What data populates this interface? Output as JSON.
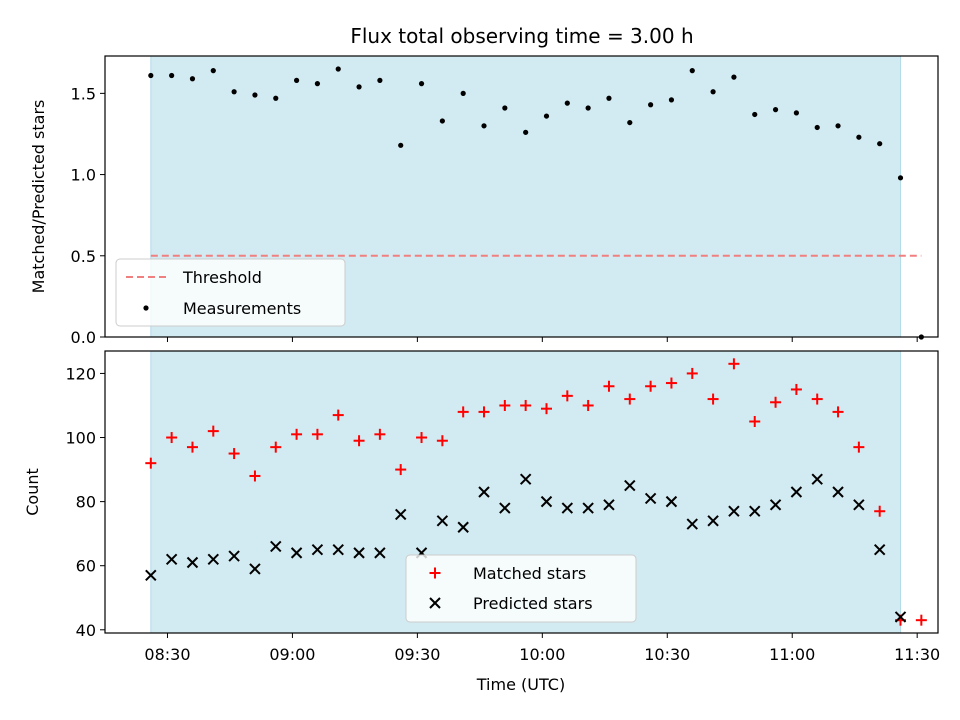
{
  "colors": {
    "shade": "#add8e6",
    "threshold": "#f08080",
    "measurement": "#000000",
    "matched": "#ff0000",
    "predicted": "#000000"
  },
  "chart_data": [
    {
      "type": "scatter",
      "title": "Flux total observing time = 3.00 h",
      "ylabel": "Matched/Predicted stars",
      "xlabel": "",
      "xlim": [
        "08:15",
        "11:35"
      ],
      "ylim": [
        0,
        1.73
      ],
      "yticks": [
        0.0,
        0.5,
        1.0,
        1.5
      ],
      "ytick_labels": [
        "0.0",
        "0.5",
        "1.0",
        "1.5"
      ],
      "shaded_span": [
        "08:26",
        "11:26"
      ],
      "threshold": {
        "name": "Threshold",
        "y": 0.5,
        "x_range": [
          "08:26",
          "11:31"
        ]
      },
      "legend": {
        "position": "lower-left",
        "entries": [
          "Threshold",
          "Measurements"
        ]
      },
      "series": [
        {
          "name": "Measurements",
          "x": [
            "08:26",
            "08:31",
            "08:36",
            "08:41",
            "08:46",
            "08:51",
            "08:56",
            "09:01",
            "09:06",
            "09:11",
            "09:16",
            "09:21",
            "09:26",
            "09:31",
            "09:36",
            "09:41",
            "09:46",
            "09:51",
            "09:56",
            "10:01",
            "10:06",
            "10:11",
            "10:16",
            "10:21",
            "10:26",
            "10:31",
            "10:36",
            "10:41",
            "10:46",
            "10:51",
            "10:56",
            "11:01",
            "11:06",
            "11:11",
            "11:16",
            "11:21",
            "11:26",
            "11:31"
          ],
          "y": [
            1.61,
            1.61,
            1.59,
            1.64,
            1.51,
            1.49,
            1.47,
            1.58,
            1.56,
            1.65,
            1.54,
            1.58,
            1.18,
            1.56,
            1.33,
            1.5,
            1.3,
            1.41,
            1.26,
            1.36,
            1.44,
            1.41,
            1.47,
            1.32,
            1.43,
            1.46,
            1.64,
            1.51,
            1.6,
            1.37,
            1.4,
            1.38,
            1.29,
            1.3,
            1.23,
            1.19,
            0.98,
            0.0
          ]
        }
      ]
    },
    {
      "type": "scatter",
      "title": "",
      "ylabel": "Count",
      "xlabel": "Time (UTC)",
      "xlim": [
        "08:15",
        "11:35"
      ],
      "ylim": [
        39,
        127
      ],
      "yticks": [
        40,
        60,
        80,
        100,
        120
      ],
      "ytick_labels": [
        "40",
        "60",
        "80",
        "100",
        "120"
      ],
      "xticks": [
        "08:30",
        "09:00",
        "09:30",
        "10:00",
        "10:30",
        "11:00",
        "11:30"
      ],
      "xtick_labels": [
        "08:30",
        "09:00",
        "09:30",
        "10:00",
        "10:30",
        "11:00",
        "11:30"
      ],
      "shaded_span": [
        "08:26",
        "11:26"
      ],
      "legend": {
        "position": "lower-center",
        "entries": [
          "Matched stars",
          "Predicted stars"
        ]
      },
      "series": [
        {
          "name": "Matched stars",
          "x": [
            "08:26",
            "08:31",
            "08:36",
            "08:41",
            "08:46",
            "08:51",
            "08:56",
            "09:01",
            "09:06",
            "09:11",
            "09:16",
            "09:21",
            "09:26",
            "09:31",
            "09:36",
            "09:41",
            "09:46",
            "09:51",
            "09:56",
            "10:01",
            "10:06",
            "10:11",
            "10:16",
            "10:21",
            "10:26",
            "10:31",
            "10:36",
            "10:41",
            "10:46",
            "10:51",
            "10:56",
            "11:01",
            "11:06",
            "11:11",
            "11:16",
            "11:21",
            "11:26",
            "11:31"
          ],
          "y": [
            92,
            100,
            97,
            102,
            95,
            88,
            97,
            101,
            101,
            107,
            99,
            101,
            90,
            100,
            99,
            108,
            108,
            110,
            110,
            109,
            113,
            110,
            116,
            112,
            116,
            117,
            120,
            112,
            123,
            105,
            111,
            115,
            112,
            108,
            97,
            77,
            43,
            43
          ]
        },
        {
          "name": "Predicted stars",
          "x": [
            "08:26",
            "08:31",
            "08:36",
            "08:41",
            "08:46",
            "08:51",
            "08:56",
            "09:01",
            "09:06",
            "09:11",
            "09:16",
            "09:21",
            "09:26",
            "09:31",
            "09:36",
            "09:41",
            "09:46",
            "09:51",
            "09:56",
            "10:01",
            "10:06",
            "10:11",
            "10:16",
            "10:21",
            "10:26",
            "10:31",
            "10:36",
            "10:41",
            "10:46",
            "10:51",
            "10:56",
            "11:01",
            "11:06",
            "11:11",
            "11:16",
            "11:21",
            "11:26"
          ],
          "y": [
            57,
            62,
            61,
            62,
            63,
            59,
            66,
            64,
            65,
            65,
            64,
            64,
            76,
            64,
            74,
            72,
            83,
            78,
            87,
            80,
            78,
            78,
            79,
            85,
            81,
            80,
            73,
            74,
            77,
            77,
            79,
            83,
            87,
            83,
            79,
            65,
            44
          ]
        }
      ]
    }
  ]
}
